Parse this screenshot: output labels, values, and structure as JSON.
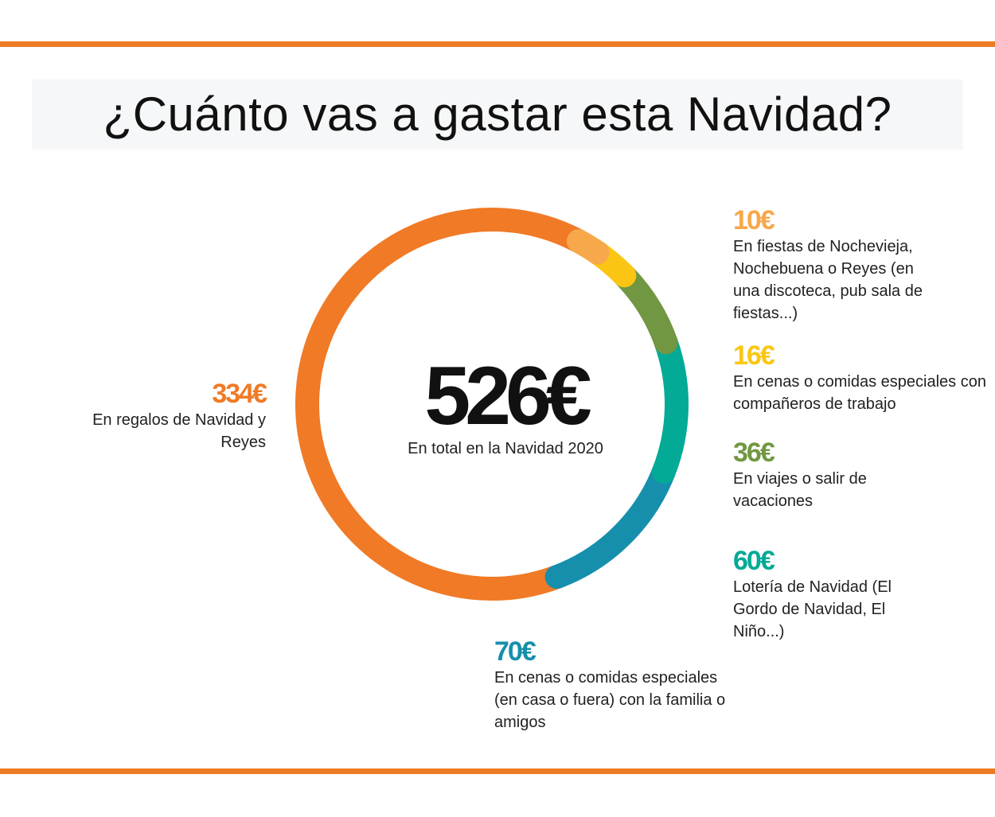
{
  "title": "¿Cuánto vas a gastar esta Navidad?",
  "center": {
    "total": "526€",
    "subtitle": "En total en la Navidad 2020"
  },
  "colors": {
    "rule": "#ef7a25",
    "regalos": "#f07a26",
    "fiestas": "#f7a84a",
    "companeros": "#fbc613",
    "viajes": "#719742",
    "loteria": "#03aa96",
    "familia": "#168fac"
  },
  "chart_data": {
    "type": "pie",
    "donut": true,
    "title": "¿Cuánto vas a gastar esta Navidad?",
    "total": 526,
    "unit": "€",
    "categories": [
      "En fiestas de Nochevieja, Nochebuena o Reyes (en una discoteca, pub sala de fiestas...)",
      "En cenas o comidas especiales con compañeros de trabajo",
      "En viajes o salir de vacaciones",
      "Lotería de Navidad (El Gordo de Navidad, El Niño...)",
      "En cenas o comidas especiales (en casa o fuera) con la familia o amigos",
      "En regalos de Navidad y Reyes"
    ],
    "values": [
      10,
      16,
      36,
      60,
      70,
      334
    ],
    "segments": [
      {
        "key": "fiestas",
        "value": 10,
        "value_label": "10€",
        "desc": "En fiestas de Nochevieja, Nochebuena o Reyes (en una discoteca, pub sala de fiestas...)",
        "color": "#f7a84a"
      },
      {
        "key": "companeros",
        "value": 16,
        "value_label": "16€",
        "desc": "En cenas o comidas especiales con compañeros de trabajo",
        "color": "#fbc613"
      },
      {
        "key": "viajes",
        "value": 36,
        "value_label": "36€",
        "desc": "En viajes o salir de vacaciones",
        "color": "#719742"
      },
      {
        "key": "loteria",
        "value": 60,
        "value_label": "60€",
        "desc": "Lotería de Navidad (El Gordo de Navidad, El Niño...)",
        "color": "#03aa96"
      },
      {
        "key": "familia",
        "value": 70,
        "value_label": "70€",
        "desc": "En cenas o comidas especiales (en casa o fuera) con la familia o amigos",
        "color": "#168fac"
      },
      {
        "key": "regalos",
        "value": 334,
        "value_label": "334€",
        "desc": "En regalos de Navidad y Reyes",
        "color": "#f07a26"
      }
    ]
  }
}
